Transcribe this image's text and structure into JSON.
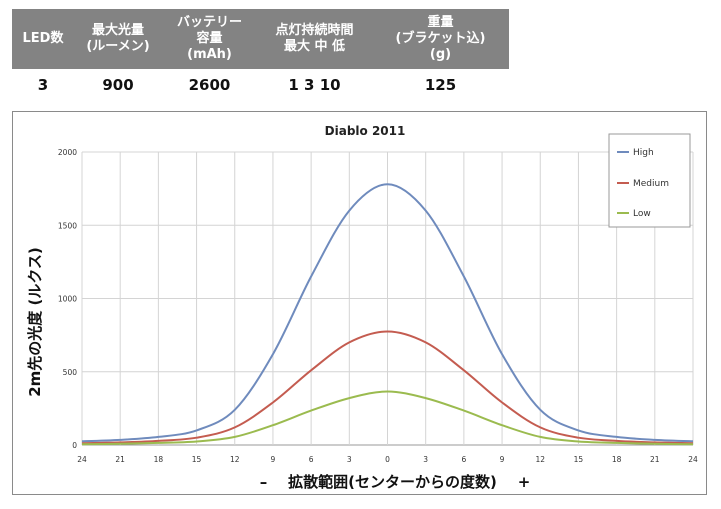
{
  "spec_table": {
    "headers": [
      "LED数",
      "最大光量\n(ルーメン)",
      "バッテリー\n容量\n(mAh)",
      "点灯持続時間\n最大  中  低",
      "重量\n(ブラケット込)\n(g)"
    ],
    "values": [
      "3",
      "900",
      "2600",
      "1    3    10",
      "125"
    ]
  },
  "chart_data": {
    "type": "line",
    "title": "Diablo 2011",
    "xlabel": "–    拡散範囲(センターからの度数)    +",
    "ylabel": "2m先の光度 (ルクス)",
    "x_ticks": [
      "24",
      "21",
      "18",
      "15",
      "12",
      "9",
      "6",
      "3",
      "0",
      "3",
      "6",
      "9",
      "12",
      "15",
      "18",
      "21",
      "24"
    ],
    "y_ticks": [
      "0",
      "500",
      "1000",
      "1500",
      "2000"
    ],
    "ylim": [
      0,
      2000
    ],
    "grid": true,
    "legend_position": "top-right",
    "series": [
      {
        "name": "High",
        "color": "#6f8bbd",
        "values": [
          25,
          35,
          55,
          100,
          240,
          620,
          1150,
          1600,
          1780,
          1600,
          1150,
          620,
          240,
          100,
          55,
          35,
          25
        ]
      },
      {
        "name": "Medium",
        "color": "#c45c50",
        "values": [
          12,
          18,
          28,
          50,
          120,
          290,
          510,
          700,
          775,
          700,
          510,
          290,
          120,
          50,
          28,
          18,
          12
        ]
      },
      {
        "name": "Low",
        "color": "#9bbb4f",
        "values": [
          5,
          8,
          14,
          24,
          55,
          135,
          235,
          320,
          365,
          320,
          235,
          135,
          55,
          24,
          14,
          8,
          5
        ]
      }
    ]
  }
}
